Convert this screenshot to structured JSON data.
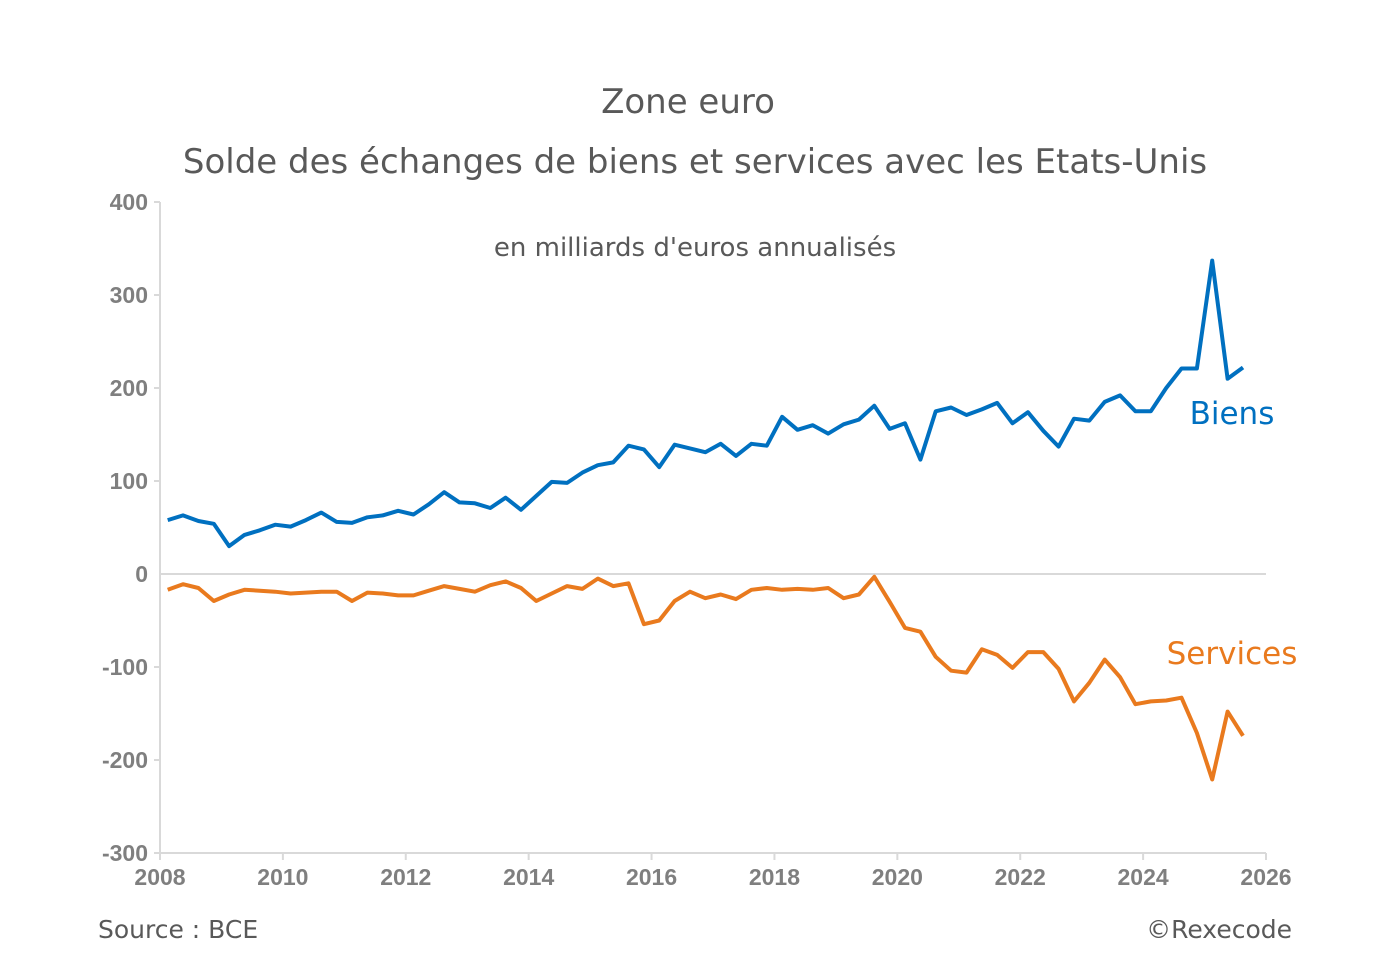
{
  "chart_data": {
    "type": "line",
    "title": "Zone euro",
    "subtitle": "Solde des échanges de biens et services avec les Etats-Unis",
    "annotation": "en milliards d'euros annualisés",
    "source": "Source : BCE",
    "credit": "©Rexecode",
    "xlim": [
      2008,
      2026
    ],
    "xticks": [
      2008,
      2010,
      2012,
      2014,
      2016,
      2018,
      2020,
      2022,
      2024,
      2026
    ],
    "ylim": [
      -300,
      400
    ],
    "yticks": [
      -300,
      -200,
      -100,
      0,
      100,
      200,
      300,
      400
    ],
    "x": [
      2008.125,
      2008.375,
      2008.625,
      2008.875,
      2009.125,
      2009.375,
      2009.625,
      2009.875,
      2010.125,
      2010.375,
      2010.625,
      2010.875,
      2011.125,
      2011.375,
      2011.625,
      2011.875,
      2012.125,
      2012.375,
      2012.625,
      2012.875,
      2013.125,
      2013.375,
      2013.625,
      2013.875,
      2014.125,
      2014.375,
      2014.625,
      2014.875,
      2015.125,
      2015.375,
      2015.625,
      2015.875,
      2016.125,
      2016.375,
      2016.625,
      2016.875,
      2017.125,
      2017.375,
      2017.625,
      2017.875,
      2018.125,
      2018.375,
      2018.625,
      2018.875,
      2019.125,
      2019.375,
      2019.625,
      2019.875,
      2020.125,
      2020.375,
      2020.625,
      2020.875,
      2021.125,
      2021.375,
      2021.625,
      2021.875,
      2022.125,
      2022.375,
      2022.625,
      2022.875,
      2023.125,
      2023.375,
      2023.625,
      2023.875,
      2024.125,
      2024.375,
      2024.625,
      2024.875,
      2025.125,
      2025.375,
      2025.625
    ],
    "series": [
      {
        "name": "Biens",
        "color": "#0070c0",
        "values": [
          58,
          63,
          57,
          54,
          30,
          42,
          47,
          53,
          51,
          58,
          66,
          56,
          55,
          61,
          63,
          68,
          64,
          75,
          88,
          77,
          76,
          71,
          82,
          69,
          84,
          99,
          98,
          109,
          117,
          120,
          138,
          134,
          115,
          139,
          135,
          131,
          140,
          127,
          140,
          138,
          169,
          155,
          160,
          151,
          161,
          166,
          181,
          156,
          162,
          123,
          175,
          179,
          171,
          177,
          184,
          162,
          174,
          154,
          137,
          167,
          165,
          185,
          192,
          175,
          175,
          200,
          221,
          221,
          337,
          210,
          222
        ]
      },
      {
        "name": "Services",
        "color": "#e97a1e",
        "values": [
          -17,
          -11,
          -15,
          -29,
          -22,
          -17,
          -18,
          -19,
          -21,
          -20,
          -19,
          -19,
          -29,
          -20,
          -21,
          -23,
          -23,
          -18,
          -13,
          -16,
          -19,
          -12,
          -8,
          -15,
          -29,
          -21,
          -13,
          -16,
          -5,
          -13,
          -10,
          -54,
          -50,
          -29,
          -19,
          -26,
          -22,
          -27,
          -17,
          -15,
          -17,
          -16,
          -17,
          -15,
          -26,
          -22,
          -3,
          -30,
          -58,
          -62,
          -89,
          -104,
          -106,
          -81,
          -87,
          -101,
          -84,
          -84,
          -102,
          -137,
          -117,
          -92,
          -111,
          -140,
          -137,
          -136,
          -133,
          -171,
          -221,
          -148,
          -174
        ]
      }
    ]
  }
}
